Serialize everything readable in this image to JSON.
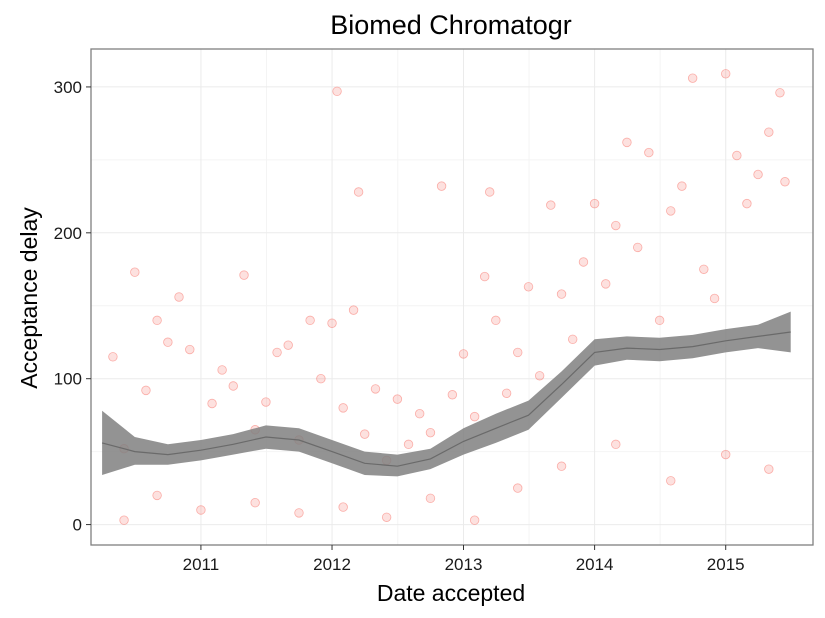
{
  "chart_data": {
    "type": "scatter",
    "title": "Biomed Chromatogr",
    "xlabel": "Date accepted",
    "ylabel": "Acceptance delay",
    "xlim": [
      "2010-03-01",
      "2015-09-01"
    ],
    "ylim": [
      -14,
      326
    ],
    "x_ticks": [
      {
        "value": "2011-01-01",
        "label": "2011"
      },
      {
        "value": "2012-01-01",
        "label": "2012"
      },
      {
        "value": "2013-01-01",
        "label": "2013"
      },
      {
        "value": "2014-01-01",
        "label": "2014"
      },
      {
        "value": "2015-01-01",
        "label": "2015"
      }
    ],
    "y_ticks": [
      0,
      100,
      200,
      300
    ],
    "grid": true,
    "colors": {
      "points": "#f8766d",
      "smooth_band": "#808080",
      "panel_border": "#7f7f7f",
      "grid": "#ebebeb"
    },
    "smooth": {
      "x": [
        "2010-04-01",
        "2010-07-01",
        "2010-10-01",
        "2011-01-01",
        "2011-04-01",
        "2011-07-01",
        "2011-10-01",
        "2012-01-01",
        "2012-04-01",
        "2012-07-01",
        "2012-10-01",
        "2013-01-01",
        "2013-04-01",
        "2013-07-01",
        "2013-10-01",
        "2014-01-01",
        "2014-04-01",
        "2014-07-01",
        "2014-10-01",
        "2015-01-01",
        "2015-04-01",
        "2015-07-01"
      ],
      "y": [
        56,
        50,
        48,
        51,
        55,
        60,
        58,
        50,
        42,
        40,
        45,
        57,
        66,
        75,
        96,
        118,
        121,
        120,
        122,
        126,
        129,
        132
      ],
      "lower": [
        34,
        41,
        41,
        44,
        48,
        52,
        50,
        42,
        34,
        33,
        38,
        48,
        56,
        65,
        87,
        109,
        113,
        112,
        114,
        118,
        121,
        118
      ],
      "upper": [
        78,
        60,
        55,
        58,
        62,
        68,
        66,
        58,
        50,
        48,
        52,
        66,
        76,
        85,
        105,
        127,
        129,
        128,
        130,
        134,
        137,
        146
      ]
    },
    "points": [
      [
        "2010-05-01",
        115
      ],
      [
        "2010-06-01",
        52
      ],
      [
        "2010-07-01",
        173
      ],
      [
        "2010-08-01",
        92
      ],
      [
        "2010-09-01",
        140
      ],
      [
        "2010-10-01",
        125
      ],
      [
        "2010-11-01",
        156
      ],
      [
        "2010-12-01",
        120
      ],
      [
        "2011-02-01",
        83
      ],
      [
        "2011-03-01",
        106
      ],
      [
        "2011-04-01",
        95
      ],
      [
        "2011-05-01",
        171
      ],
      [
        "2011-06-01",
        65
      ],
      [
        "2011-07-01",
        84
      ],
      [
        "2011-08-01",
        118
      ],
      [
        "2011-09-01",
        123
      ],
      [
        "2011-10-01",
        58
      ],
      [
        "2011-11-01",
        140
      ],
      [
        "2011-12-01",
        100
      ],
      [
        "2012-01-01",
        138
      ],
      [
        "2012-01-15",
        297
      ],
      [
        "2012-02-01",
        80
      ],
      [
        "2012-03-01",
        147
      ],
      [
        "2012-03-15",
        228
      ],
      [
        "2012-04-01",
        62
      ],
      [
        "2012-05-01",
        93
      ],
      [
        "2012-06-01",
        44
      ],
      [
        "2012-07-01",
        86
      ],
      [
        "2012-08-01",
        55
      ],
      [
        "2012-09-01",
        76
      ],
      [
        "2012-10-01",
        63
      ],
      [
        "2012-11-01",
        232
      ],
      [
        "2012-12-01",
        89
      ],
      [
        "2013-01-01",
        117
      ],
      [
        "2013-02-01",
        74
      ],
      [
        "2013-03-01",
        170
      ],
      [
        "2013-03-15",
        228
      ],
      [
        "2013-04-01",
        140
      ],
      [
        "2013-05-01",
        90
      ],
      [
        "2013-06-01",
        118
      ],
      [
        "2013-07-01",
        163
      ],
      [
        "2013-08-01",
        102
      ],
      [
        "2013-09-01",
        219
      ],
      [
        "2013-10-01",
        158
      ],
      [
        "2013-11-01",
        127
      ],
      [
        "2013-12-01",
        180
      ],
      [
        "2014-01-01",
        220
      ],
      [
        "2014-02-01",
        165
      ],
      [
        "2014-03-01",
        205
      ],
      [
        "2014-04-01",
        262
      ],
      [
        "2014-05-01",
        190
      ],
      [
        "2014-06-01",
        255
      ],
      [
        "2014-07-01",
        140
      ],
      [
        "2014-08-01",
        215
      ],
      [
        "2014-09-01",
        232
      ],
      [
        "2014-10-01",
        306
      ],
      [
        "2014-11-01",
        175
      ],
      [
        "2014-12-01",
        155
      ],
      [
        "2015-01-01",
        309
      ],
      [
        "2015-02-01",
        253
      ],
      [
        "2015-03-01",
        220
      ],
      [
        "2015-04-01",
        240
      ],
      [
        "2015-05-01",
        269
      ],
      [
        "2015-06-01",
        296
      ],
      [
        "2015-06-15",
        235
      ],
      [
        "2010-06-01",
        3
      ],
      [
        "2010-09-01",
        20
      ],
      [
        "2011-01-01",
        10
      ],
      [
        "2011-06-01",
        15
      ],
      [
        "2011-10-01",
        8
      ],
      [
        "2012-02-01",
        12
      ],
      [
        "2012-06-01",
        5
      ],
      [
        "2012-10-01",
        18
      ],
      [
        "2013-02-01",
        3
      ],
      [
        "2013-06-01",
        25
      ],
      [
        "2013-10-01",
        40
      ],
      [
        "2014-03-01",
        55
      ],
      [
        "2014-08-01",
        30
      ],
      [
        "2015-01-01",
        48
      ],
      [
        "2015-05-01",
        38
      ]
    ]
  }
}
